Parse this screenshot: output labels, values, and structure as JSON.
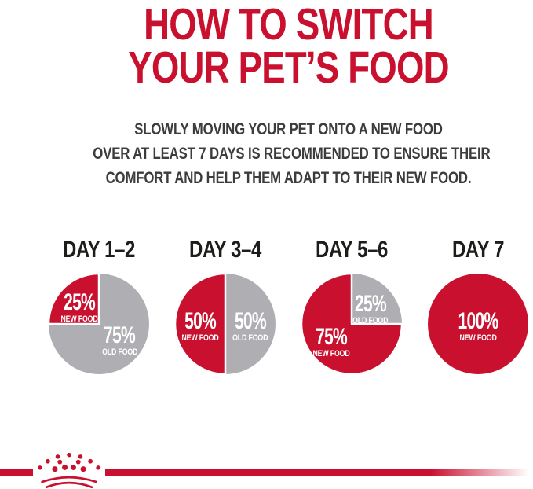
{
  "title": {
    "line1": "HOW TO SWITCH",
    "line2": "YOUR PET’S FOOD"
  },
  "subtitle": {
    "line1": "SLOWLY MOVING YOUR PET ONTO A NEW FOOD",
    "line2": "OVER AT LEAST 7 DAYS IS RECOMMENDED TO ENSURE THEIR",
    "line3": "COMFORT AND HELP THEM ADAPT TO THEIR NEW FOOD."
  },
  "colors": {
    "brand_red": "#C9102E",
    "pie_gray": "#AFAEB2",
    "subtitle_gray": "#3C3C3B",
    "day_label_black": "#1D1D1B",
    "slice_text_white": "#FFFFFF"
  },
  "chart_data": [
    {
      "type": "pie",
      "title": "DAY 1–2",
      "red_start_angle_deg": 270,
      "legend_position": "inside",
      "slices": [
        {
          "label": "NEW FOOD",
          "value": 25,
          "display": "25%",
          "color": "#C9102E"
        },
        {
          "label": "OLD FOOD",
          "value": 75,
          "display": "75%",
          "color": "#AFAEB2"
        }
      ]
    },
    {
      "type": "pie",
      "title": "DAY 3–4",
      "red_start_angle_deg": 180,
      "legend_position": "inside",
      "slices": [
        {
          "label": "NEW FOOD",
          "value": 50,
          "display": "50%",
          "color": "#C9102E"
        },
        {
          "label": "OLD FOOD",
          "value": 50,
          "display": "50%",
          "color": "#AFAEB2"
        }
      ]
    },
    {
      "type": "pie",
      "title": "DAY 5–6",
      "red_start_angle_deg": 90,
      "legend_position": "inside",
      "slices": [
        {
          "label": "NEW FOOD",
          "value": 75,
          "display": "75%",
          "color": "#C9102E"
        },
        {
          "label": "OLD FOOD",
          "value": 25,
          "display": "25%",
          "color": "#AFAEB2"
        }
      ]
    },
    {
      "type": "pie",
      "title": "DAY 7",
      "red_start_angle_deg": 0,
      "legend_position": "inside",
      "slices": [
        {
          "label": "NEW FOOD",
          "value": 100,
          "display": "100%",
          "color": "#C9102E"
        }
      ]
    }
  ],
  "footer": {
    "logo": "royal-canin-crown-logo"
  }
}
